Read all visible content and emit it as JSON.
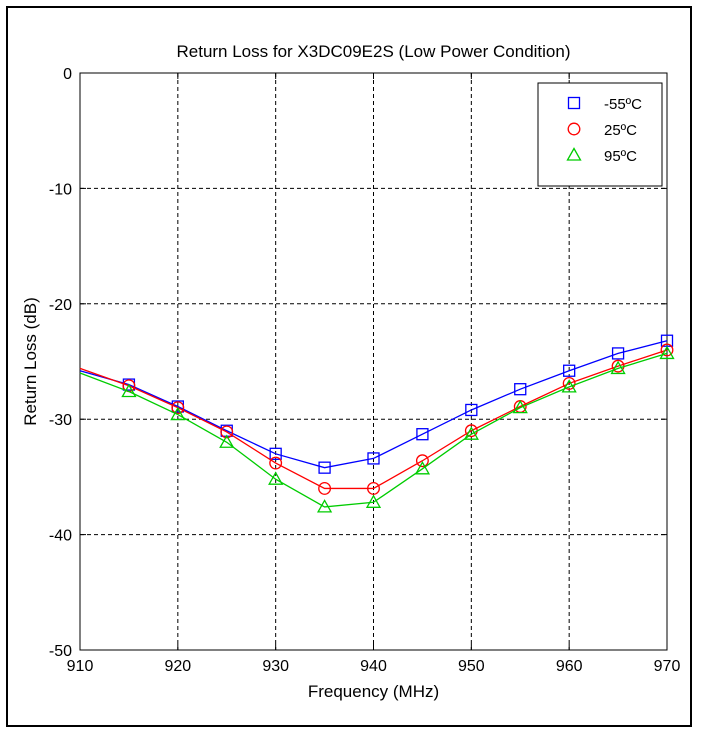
{
  "chart_data": {
    "type": "line",
    "title": "Return Loss for X3DC09E2S (Low Power Condition)",
    "xlabel": "Frequency (MHz)",
    "ylabel": "Return Loss (dB)",
    "xlim": [
      910,
      970
    ],
    "ylim": [
      -50,
      0
    ],
    "xticks": [
      910,
      920,
      930,
      940,
      950,
      960,
      970
    ],
    "yticks": [
      0,
      -10,
      -20,
      -30,
      -40,
      -50
    ],
    "xtick_labels": [
      "910",
      "920",
      "930",
      "940",
      "950",
      "960",
      "970"
    ],
    "ytick_labels": [
      "0",
      "-10",
      "-20",
      "-30",
      "-40",
      "-50"
    ],
    "grid": true,
    "legend_position": "top-right",
    "series": [
      {
        "name": "-55ºC",
        "color": "#0000ff",
        "marker": "square",
        "line_x": [
          910,
          915,
          920,
          925,
          930,
          935,
          940,
          945,
          950,
          955,
          960,
          965,
          970
        ],
        "line_y": [
          -25.8,
          -27.0,
          -28.9,
          -31.0,
          -33.0,
          -34.2,
          -33.4,
          -31.3,
          -29.2,
          -27.4,
          -25.8,
          -24.3,
          -23.2
        ],
        "x": [
          915,
          920,
          925,
          930,
          935,
          940,
          945,
          950,
          955,
          960,
          965,
          970
        ],
        "y": [
          -27.0,
          -28.9,
          -31.0,
          -33.0,
          -34.2,
          -33.4,
          -31.3,
          -29.2,
          -27.4,
          -25.8,
          -24.3,
          -23.2
        ]
      },
      {
        "name": "25ºC",
        "color": "#ff0000",
        "marker": "circle",
        "line_x": [
          910,
          915,
          920,
          925,
          930,
          935,
          940,
          945,
          950,
          955,
          960,
          965,
          970
        ],
        "line_y": [
          -25.6,
          -27.1,
          -29.0,
          -31.1,
          -33.8,
          -36.0,
          -36.0,
          -33.6,
          -31.0,
          -28.9,
          -26.9,
          -25.4,
          -24.0
        ],
        "x": [
          915,
          920,
          925,
          930,
          935,
          940,
          945,
          950,
          955,
          960,
          965,
          970
        ],
        "y": [
          -27.1,
          -29.0,
          -31.1,
          -33.8,
          -36.0,
          -36.0,
          -33.6,
          -31.0,
          -28.9,
          -26.9,
          -25.4,
          -24.0
        ]
      },
      {
        "name": "95ºC",
        "color": "#00cc00",
        "marker": "triangle",
        "line_x": [
          910,
          915,
          920,
          925,
          930,
          935,
          940,
          945,
          950,
          955,
          960,
          965,
          970
        ],
        "line_y": [
          -26.0,
          -27.6,
          -29.6,
          -32.0,
          -35.2,
          -37.6,
          -37.2,
          -34.3,
          -31.3,
          -29.0,
          -27.2,
          -25.6,
          -24.3
        ],
        "x": [
          915,
          920,
          925,
          930,
          935,
          940,
          945,
          950,
          955,
          960,
          965,
          970
        ],
        "y": [
          -27.6,
          -29.6,
          -32.0,
          -35.2,
          -37.6,
          -37.2,
          -34.3,
          -31.3,
          -29.0,
          -27.2,
          -25.6,
          -24.3
        ]
      }
    ]
  }
}
